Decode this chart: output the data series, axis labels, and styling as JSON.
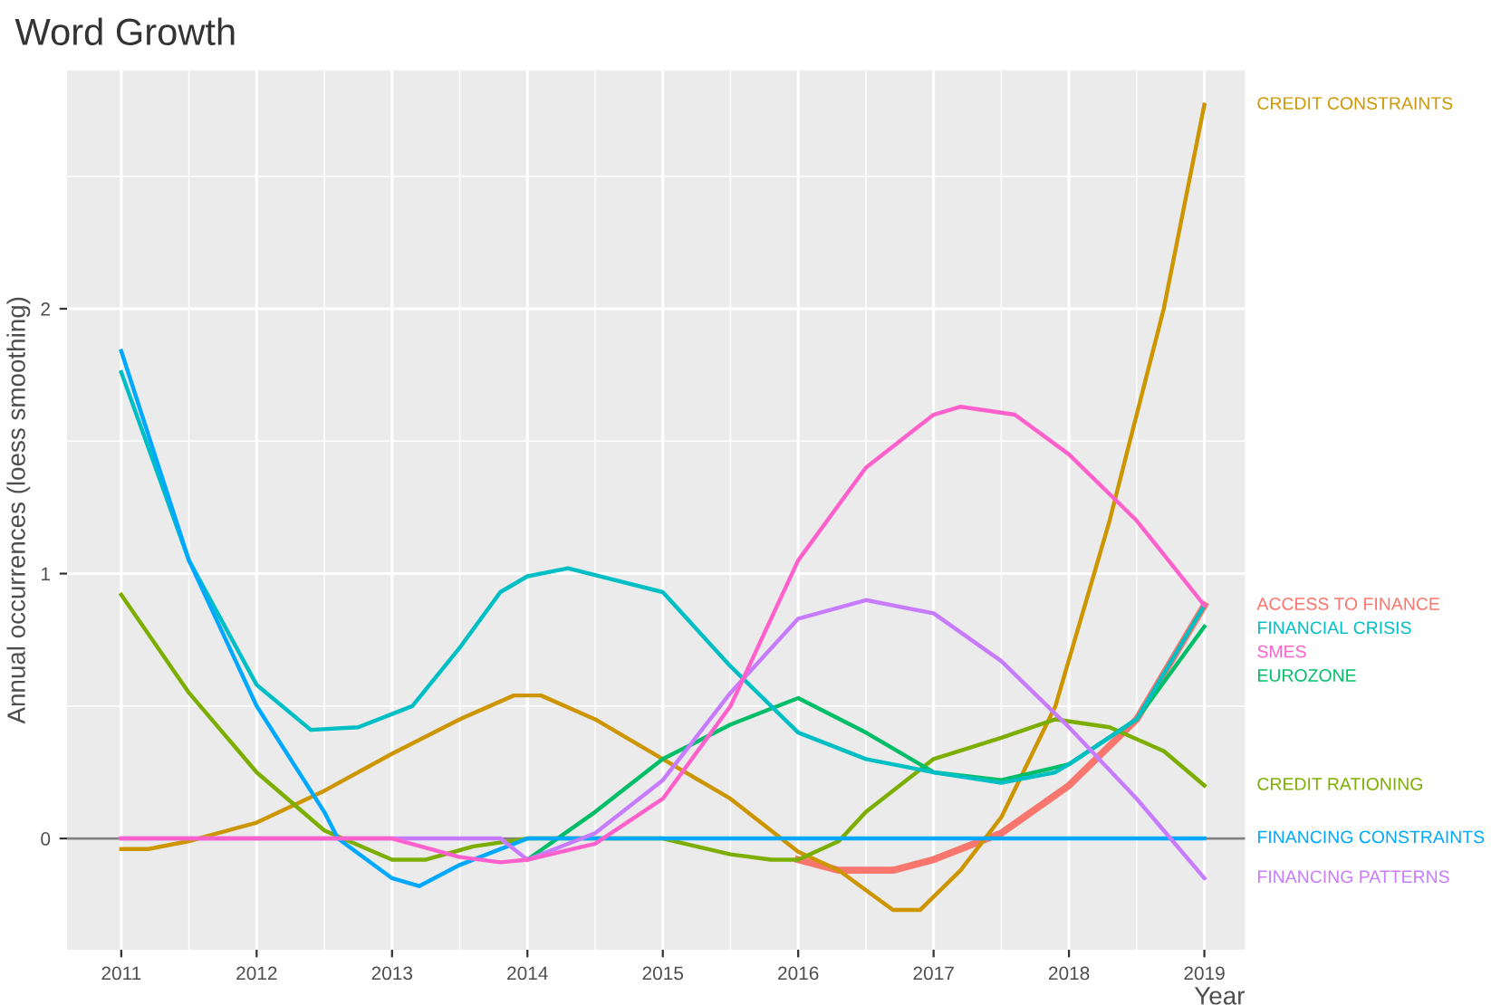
{
  "chart_data": {
    "type": "line",
    "title": "Word Growth",
    "xlabel": "Year",
    "ylabel": "Annual occurrences (loess smoothing)",
    "xlim": [
      2010.6,
      2019.3
    ],
    "xticks": [
      2011,
      2012,
      2013,
      2014,
      2015,
      2016,
      2017,
      2018,
      2019
    ],
    "ylim": [
      -0.42,
      2.9
    ],
    "yticks": [
      0,
      1,
      2
    ],
    "grid": true,
    "legend": false,
    "ref_lines": [
      {
        "axis": "y",
        "value": 0,
        "color": "#7f7f7f"
      }
    ],
    "series": [
      {
        "name": "ACCESS TO FINANCE",
        "color": "#f8766d",
        "x": [
          2016,
          2016.3,
          2016.7,
          2017,
          2017.5,
          2018,
          2018.5,
          2019
        ],
        "values": [
          -0.08,
          -0.12,
          -0.12,
          -0.08,
          0.02,
          0.2,
          0.45,
          0.88
        ]
      },
      {
        "name": "CREDIT CONSTRAINTS",
        "color": "#cd9600",
        "x": [
          2011,
          2011.2,
          2011.5,
          2012,
          2012.5,
          2013,
          2013.5,
          2013.9,
          2014.1,
          2014.5,
          2015,
          2015.5,
          2016,
          2016.3,
          2016.7,
          2016.9,
          2017.2,
          2017.5,
          2017.9,
          2018.3,
          2018.7,
          2019
        ],
        "values": [
          -0.04,
          -0.04,
          -0.01,
          0.06,
          0.18,
          0.32,
          0.45,
          0.54,
          0.54,
          0.45,
          0.3,
          0.15,
          -0.05,
          -0.12,
          -0.27,
          -0.27,
          -0.12,
          0.08,
          0.5,
          1.2,
          2.0,
          2.77
        ]
      },
      {
        "name": "CREDIT RATIONING",
        "color": "#7cae00",
        "x": [
          2011,
          2011.5,
          2012,
          2012.5,
          2013,
          2013.25,
          2013.6,
          2014,
          2015,
          2015.5,
          2015.8,
          2016,
          2016.3,
          2016.5,
          2017,
          2017.5,
          2017.9,
          2018.3,
          2018.7,
          2019
        ],
        "values": [
          0.92,
          0.55,
          0.25,
          0.03,
          -0.08,
          -0.08,
          -0.03,
          0,
          0,
          -0.06,
          -0.08,
          -0.08,
          -0.01,
          0.1,
          0.3,
          0.38,
          0.45,
          0.42,
          0.33,
          0.2
        ]
      },
      {
        "name": "EUROZONE",
        "color": "#00be67",
        "x": [
          2014,
          2014.5,
          2015,
          2015.5,
          2016,
          2016.5,
          2017,
          2017.5,
          2018,
          2018.5,
          2019
        ],
        "values": [
          -0.08,
          0.1,
          0.3,
          0.43,
          0.53,
          0.4,
          0.25,
          0.22,
          0.28,
          0.45,
          0.8
        ]
      },
      {
        "name": "FINANCIAL CRISIS",
        "color": "#00bfc4",
        "x": [
          2011,
          2011.5,
          2012,
          2012.4,
          2012.75,
          2013,
          2013.15,
          2013.5,
          2013.8,
          2014,
          2014.3,
          2015,
          2015.5,
          2016,
          2016.5,
          2017,
          2017.5,
          2017.9,
          2018,
          2018.5,
          2019
        ],
        "values": [
          1.76,
          1.05,
          0.58,
          0.41,
          0.42,
          0.47,
          0.5,
          0.72,
          0.93,
          0.99,
          1.02,
          0.93,
          0.65,
          0.4,
          0.3,
          0.25,
          0.21,
          0.25,
          0.28,
          0.45,
          0.88
        ]
      },
      {
        "name": "FINANCING CONSTRAINTS",
        "color": "#00a9ff",
        "x": [
          2011,
          2011.5,
          2012,
          2012.5,
          2012.6,
          2013,
          2013.2,
          2013.5,
          2014,
          2015,
          2016,
          2017,
          2018,
          2019
        ],
        "values": [
          1.84,
          1.05,
          0.5,
          0.1,
          0,
          -0.15,
          -0.18,
          -0.1,
          0,
          0,
          0,
          0,
          0,
          0
        ]
      },
      {
        "name": "FINANCING PATTERNS",
        "color": "#c77cff",
        "x": [
          2011,
          2012,
          2013,
          2013.8,
          2014,
          2014.5,
          2015,
          2015.5,
          2016,
          2016.5,
          2017,
          2017.5,
          2018,
          2018.5,
          2019
        ],
        "values": [
          0,
          0,
          0,
          0,
          -0.08,
          0.02,
          0.22,
          0.55,
          0.83,
          0.9,
          0.85,
          0.67,
          0.42,
          0.15,
          -0.15
        ]
      },
      {
        "name": "SMES",
        "color": "#ff61cc",
        "x": [
          2011,
          2012,
          2013,
          2013.5,
          2013.8,
          2014,
          2014.5,
          2015,
          2015.5,
          2016,
          2016.5,
          2017,
          2017.2,
          2017.6,
          2018,
          2018.5,
          2019
        ],
        "values": [
          0,
          0,
          0,
          -0.07,
          -0.09,
          -0.08,
          -0.02,
          0.15,
          0.5,
          1.05,
          1.4,
          1.6,
          1.63,
          1.6,
          1.45,
          1.2,
          0.88
        ]
      }
    ]
  }
}
